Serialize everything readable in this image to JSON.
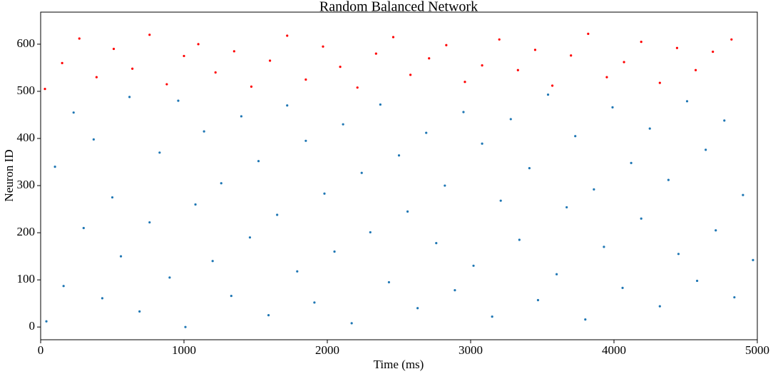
{
  "chart_data": {
    "type": "scatter",
    "title": "Random Balanced Network",
    "x_label": "Time (ms)",
    "y_label": "Neuron ID",
    "xlim": [
      0,
      5000
    ],
    "xticks": [
      0,
      1000,
      2000,
      3000,
      4000,
      5000
    ],
    "ylim": [
      -27,
      668
    ],
    "yticks": [
      0,
      100,
      200,
      300,
      400,
      500,
      600
    ],
    "grid": false,
    "series": [
      {
        "color": "#1f77b4",
        "x": [
          40,
          100,
          160,
          230,
          300,
          370,
          430,
          500,
          560,
          620,
          690,
          760,
          830,
          900,
          960,
          1010,
          1080,
          1140,
          1200,
          1260,
          1330,
          1400,
          1460,
          1520,
          1590,
          1650,
          1720,
          1790,
          1850,
          1910,
          1980,
          2050,
          2110,
          2170,
          2240,
          2300,
          2370,
          2430,
          2500,
          2560,
          2630,
          2690,
          2760,
          2820,
          2890,
          2950,
          3020,
          3080,
          3150,
          3210,
          3280,
          3340,
          3410,
          3470,
          3540,
          3600,
          3670,
          3730,
          3800,
          3860,
          3930,
          3990,
          4060,
          4120,
          4190,
          4250,
          4320,
          4380,
          4450,
          4510,
          4580,
          4640,
          4710,
          4770,
          4840,
          4900,
          4970
        ],
        "values": [
          12,
          340,
          87,
          455,
          210,
          398,
          61,
          275,
          150,
          488,
          33,
          222,
          370,
          105,
          480,
          0,
          260,
          415,
          140,
          305,
          66,
          447,
          190,
          352,
          25,
          238,
          470,
          118,
          395,
          52,
          283,
          160,
          430,
          8,
          327,
          201,
          472,
          95,
          364,
          245,
          40,
          412,
          178,
          300,
          78,
          456,
          130,
          389,
          22,
          268,
          441,
          185,
          337,
          57,
          493,
          112,
          254,
          405,
          16,
          292,
          170,
          466,
          83,
          348,
          230,
          421,
          44,
          312,
          155,
          479,
          98,
          376,
          205,
          438,
          63,
          280,
          142
        ]
      },
      {
        "color": "#ff0000",
        "x": [
          30,
          150,
          270,
          390,
          510,
          640,
          760,
          880,
          1000,
          1100,
          1220,
          1350,
          1470,
          1600,
          1720,
          1850,
          1970,
          2090,
          2210,
          2340,
          2460,
          2580,
          2710,
          2830,
          2960,
          3080,
          3200,
          3330,
          3450,
          3570,
          3700,
          3820,
          3950,
          4070,
          4190,
          4320,
          4440,
          4570,
          4690,
          4820
        ],
        "values": [
          505,
          560,
          612,
          530,
          590,
          548,
          620,
          515,
          575,
          600,
          540,
          585,
          510,
          565,
          618,
          525,
          595,
          552,
          508,
          580,
          615,
          535,
          570,
          598,
          520,
          555,
          610,
          545,
          588,
          512,
          576,
          622,
          530,
          562,
          605,
          518,
          592,
          545,
          584,
          610
        ]
      }
    ]
  }
}
